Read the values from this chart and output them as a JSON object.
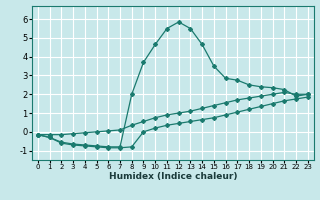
{
  "xlabel": "Humidex (Indice chaleur)",
  "bg_color": "#c8e8ea",
  "grid_color": "#ffffff",
  "line_color": "#1a7a6e",
  "xlim": [
    -0.5,
    23.5
  ],
  "ylim": [
    -1.5,
    6.7
  ],
  "xticks": [
    0,
    1,
    2,
    3,
    4,
    5,
    6,
    7,
    8,
    9,
    10,
    11,
    12,
    13,
    14,
    15,
    16,
    17,
    18,
    19,
    20,
    21,
    22,
    23
  ],
  "yticks": [
    -1,
    0,
    1,
    2,
    3,
    4,
    5,
    6
  ],
  "curve_peak_x": [
    0,
    1,
    2,
    3,
    4,
    5,
    6,
    7,
    8,
    9,
    10,
    11,
    12,
    13,
    14,
    15,
    16,
    17,
    18,
    19,
    20,
    21,
    22,
    23
  ],
  "curve_peak_y": [
    -0.15,
    -0.3,
    -0.55,
    -0.65,
    -0.7,
    -0.75,
    -0.8,
    -0.8,
    2.0,
    3.7,
    4.65,
    5.5,
    5.85,
    5.5,
    4.65,
    3.5,
    2.85,
    2.75,
    2.5,
    2.4,
    2.35,
    2.25,
    1.9,
    2.0
  ],
  "curve_linear_x": [
    0,
    1,
    2,
    3,
    4,
    5,
    6,
    7,
    8,
    9,
    10,
    11,
    12,
    13,
    14,
    15,
    16,
    17,
    18,
    19,
    20,
    21,
    22,
    23
  ],
  "curve_linear_y": [
    -0.15,
    -0.15,
    -0.15,
    -0.1,
    -0.05,
    0.0,
    0.05,
    0.1,
    0.35,
    0.55,
    0.75,
    0.9,
    1.0,
    1.1,
    1.25,
    1.4,
    1.55,
    1.7,
    1.8,
    1.9,
    2.0,
    2.1,
    2.0,
    2.0
  ],
  "curve_dip_x": [
    0,
    1,
    2,
    3,
    4,
    5,
    6,
    7,
    8,
    9,
    10,
    11,
    12,
    13,
    14,
    15,
    16,
    17,
    18,
    19,
    20,
    21,
    22,
    23
  ],
  "curve_dip_y": [
    -0.15,
    -0.3,
    -0.6,
    -0.7,
    -0.75,
    -0.8,
    -0.85,
    -0.85,
    -0.8,
    0.0,
    0.2,
    0.35,
    0.45,
    0.55,
    0.65,
    0.75,
    0.9,
    1.05,
    1.2,
    1.35,
    1.5,
    1.65,
    1.75,
    1.85
  ]
}
